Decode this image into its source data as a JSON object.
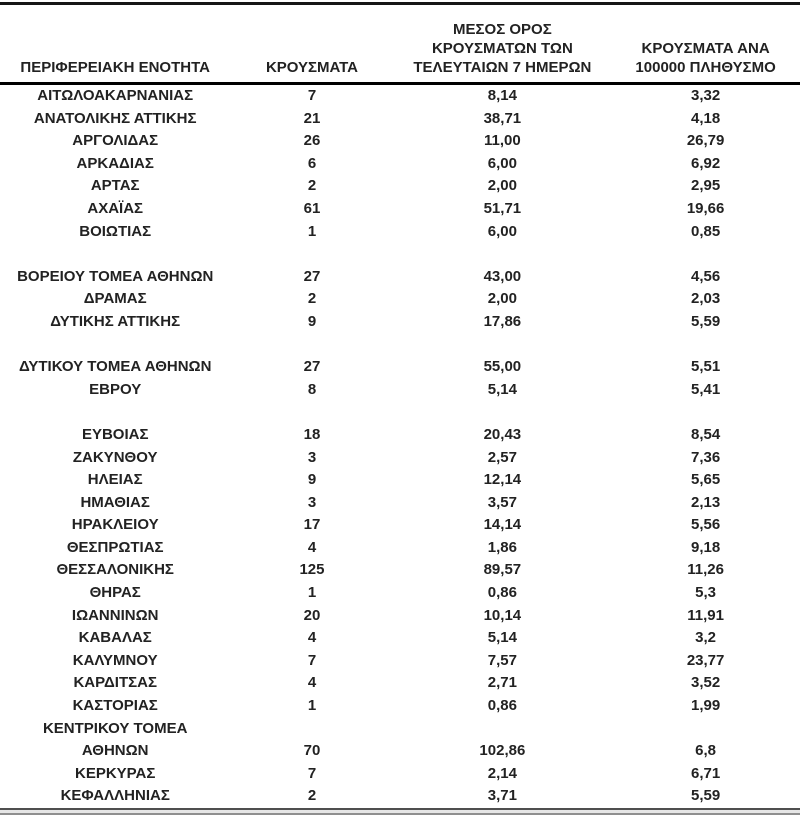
{
  "chart_data": {
    "type": "table",
    "title": "",
    "columns": [
      "ΠΕΡΙΦΕΡΕΙΑΚΗ ΕΝΟΤΗΤΑ",
      "ΚΡΟΥΣΜΑΤΑ",
      "ΜΕΣΟΣ ΟΡΟΣ\nΚΡΟΥΣΜΑΤΩΝ ΤΩΝ\nΤΕΛΕΥΤΑΙΩΝ 7 ΗΜΕΡΩΝ",
      "ΚΡΟΥΣΜΑΤΑ ΑΝΑ\n100000 ΠΛΗΘΥΣΜΟ"
    ],
    "rows": [
      {
        "name": "ΑΙΤΩΛΟΑΚΑΡΝΑΝΙΑΣ",
        "cases": "7",
        "avg7": "8,14",
        "per100k": "3,32"
      },
      {
        "name": "ΑΝΑΤΟΛΙΚΗΣ ΑΤΤΙΚΗΣ",
        "cases": "21",
        "avg7": "38,71",
        "per100k": "4,18"
      },
      {
        "name": "ΑΡΓΟΛΙΔΑΣ",
        "cases": "26",
        "avg7": "11,00",
        "per100k": "26,79"
      },
      {
        "name": "ΑΡΚΑΔΙΑΣ",
        "cases": "6",
        "avg7": "6,00",
        "per100k": "6,92"
      },
      {
        "name": "ΑΡΤΑΣ",
        "cases": "2",
        "avg7": "2,00",
        "per100k": "2,95"
      },
      {
        "name": "ΑΧΑΪΑΣ",
        "cases": "61",
        "avg7": "51,71",
        "per100k": "19,66"
      },
      {
        "name": "ΒΟΙΩΤΙΑΣ",
        "cases": "1",
        "avg7": "6,00",
        "per100k": "0,85"
      },
      {
        "spacer": true
      },
      {
        "name": "ΒΟΡΕΙΟΥ ΤΟΜΕΑ ΑΘΗΝΩΝ",
        "cases": "27",
        "avg7": "43,00",
        "per100k": "4,56"
      },
      {
        "name": "ΔΡΑΜΑΣ",
        "cases": "2",
        "avg7": "2,00",
        "per100k": "2,03"
      },
      {
        "name": "ΔΥΤΙΚΗΣ ΑΤΤΙΚΗΣ",
        "cases": "9",
        "avg7": "17,86",
        "per100k": "5,59"
      },
      {
        "spacer": true
      },
      {
        "name": "ΔΥΤΙΚΟΥ ΤΟΜΕΑ ΑΘΗΝΩΝ",
        "cases": "27",
        "avg7": "55,00",
        "per100k": "5,51"
      },
      {
        "name": "ΕΒΡΟΥ",
        "cases": "8",
        "avg7": "5,14",
        "per100k": "5,41"
      },
      {
        "spacer": true
      },
      {
        "name": "ΕΥΒΟΙΑΣ",
        "cases": "18",
        "avg7": "20,43",
        "per100k": "8,54"
      },
      {
        "name": "ΖΑΚΥΝΘΟΥ",
        "cases": "3",
        "avg7": "2,57",
        "per100k": "7,36"
      },
      {
        "name": "ΗΛΕΙΑΣ",
        "cases": "9",
        "avg7": "12,14",
        "per100k": "5,65"
      },
      {
        "name": "ΗΜΑΘΙΑΣ",
        "cases": "3",
        "avg7": "3,57",
        "per100k": "2,13"
      },
      {
        "name": "ΗΡΑΚΛΕΙΟΥ",
        "cases": "17",
        "avg7": "14,14",
        "per100k": "5,56"
      },
      {
        "name": "ΘΕΣΠΡΩΤΙΑΣ",
        "cases": "4",
        "avg7": "1,86",
        "per100k": "9,18"
      },
      {
        "name": "ΘΕΣΣΑΛΟΝΙΚΗΣ",
        "cases": "125",
        "avg7": "89,57",
        "per100k": "11,26"
      },
      {
        "name": "ΘΗΡΑΣ",
        "cases": "1",
        "avg7": "0,86",
        "per100k": "5,3"
      },
      {
        "name": "ΙΩΑΝΝΙΝΩΝ",
        "cases": "20",
        "avg7": "10,14",
        "per100k": "11,91"
      },
      {
        "name": "ΚΑΒΑΛΑΣ",
        "cases": "4",
        "avg7": "5,14",
        "per100k": "3,2"
      },
      {
        "name": "ΚΑΛΥΜΝΟΥ",
        "cases": "7",
        "avg7": "7,57",
        "per100k": "23,77"
      },
      {
        "name": "ΚΑΡΔΙΤΣΑΣ",
        "cases": "4",
        "avg7": "2,71",
        "per100k": "3,52"
      },
      {
        "name": "ΚΑΣΤΟΡΙΑΣ",
        "cases": "1",
        "avg7": "0,86",
        "per100k": "1,99"
      },
      {
        "name": "ΚΕΝΤΡΙΚΟΥ ΤΟΜΕΑ\nΑΘΗΝΩΝ",
        "multiline": true,
        "cases": "70",
        "avg7": "102,86",
        "per100k": "6,8"
      },
      {
        "name": "ΚΕΡΚΥΡΑΣ",
        "cases": "7",
        "avg7": "2,14",
        "per100k": "6,71"
      },
      {
        "name": "ΚΕΦΑΛΛΗΝΙΑΣ",
        "cases": "2",
        "avg7": "3,71",
        "per100k": "5,59"
      }
    ],
    "layout": {
      "decimal_separator": ",",
      "header_rule_color": "#000000",
      "top_rule_color": "#161616",
      "bottom_rule_colors": [
        "#4f4f4f",
        "#8f8f8f"
      ],
      "text_color": "#222222",
      "background_color": "#ffffff"
    }
  }
}
